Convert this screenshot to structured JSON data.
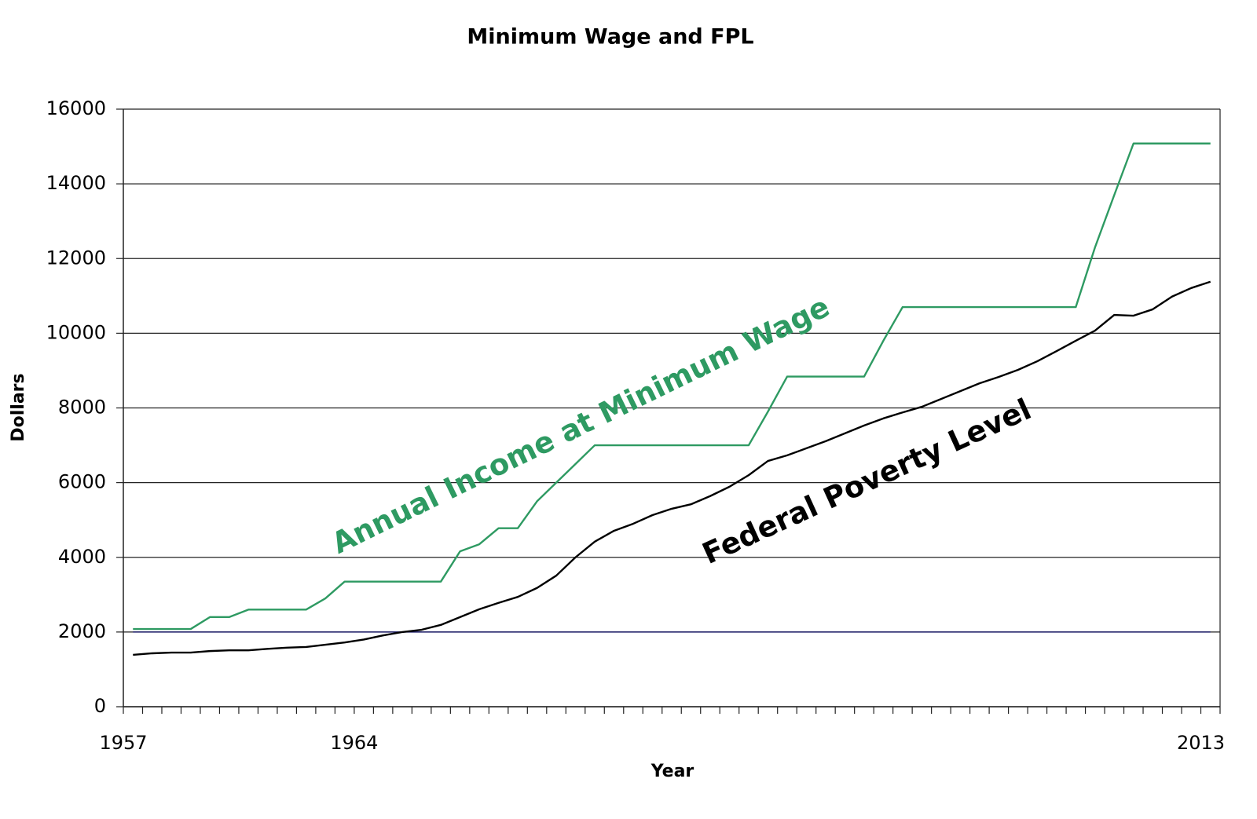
{
  "chart_data": {
    "type": "line",
    "title": "Minimum Wage and FPL",
    "x_label": "Year",
    "y_label": "Dollars",
    "categories": [
      "1957",
      null,
      null,
      null,
      null,
      null,
      null,
      null,
      null,
      null,
      null,
      null,
      "1964",
      null,
      null,
      null,
      null,
      null,
      null,
      null,
      null,
      null,
      null,
      null,
      null,
      null,
      null,
      null,
      null,
      null,
      null,
      null,
      null,
      null,
      null,
      null,
      null,
      null,
      null,
      null,
      null,
      null,
      null,
      null,
      null,
      null,
      null,
      null,
      null,
      null,
      null,
      null,
      null,
      null,
      null,
      null,
      "2013"
    ],
    "series": [
      {
        "color": "#1f1f6b",
        "values": [
          2000,
          2000,
          2000,
          2000,
          2000,
          2000,
          2000,
          2000,
          2000,
          2000,
          2000,
          2000,
          2000,
          2000,
          2000,
          2000,
          2000,
          2000,
          2000,
          2000,
          2000,
          2000,
          2000,
          2000,
          2000,
          2000,
          2000,
          2000,
          2000,
          2000,
          2000,
          2000,
          2000,
          2000,
          2000,
          2000,
          2000,
          2000,
          2000,
          2000,
          2000,
          2000,
          2000,
          2000,
          2000,
          2000,
          2000,
          2000,
          2000,
          2000,
          2000,
          2000,
          2000,
          2000,
          2000,
          2000,
          2000
        ]
      },
      {
        "name": "Annual Income at Minimum Wage",
        "color": "#2e9a62",
        "values": [
          2080,
          2080,
          2080,
          2080,
          2400,
          2400,
          2600,
          2600,
          2600,
          2600,
          2900,
          3350,
          3350,
          3350,
          3350,
          3350,
          3350,
          4160,
          4350,
          4780,
          4780,
          5500,
          6000,
          6500,
          7000,
          7000,
          7000,
          7000,
          7000,
          7000,
          7000,
          7000,
          7000,
          7900,
          8840,
          8840,
          8840,
          8840,
          8840,
          9800,
          10700,
          10700,
          10700,
          10700,
          10700,
          10700,
          10700,
          10700,
          10700,
          10700,
          12300,
          13700,
          15080,
          15080,
          15080,
          15080,
          15080
        ]
      },
      {
        "name": "Federal Poverty Level",
        "color": "#000000",
        "values": [
          1390,
          1430,
          1450,
          1450,
          1490,
          1510,
          1510,
          1550,
          1580,
          1600,
          1660,
          1720,
          1800,
          1910,
          2000,
          2060,
          2190,
          2400,
          2610,
          2780,
          2940,
          3180,
          3510,
          4000,
          4420,
          4710,
          4900,
          5130,
          5300,
          5420,
          5640,
          5890,
          6200,
          6580,
          6730,
          6920,
          7110,
          7320,
          7530,
          7720,
          7880,
          8030,
          8240,
          8450,
          8660,
          8830,
          9020,
          9250,
          9520,
          9800,
          10070,
          10490,
          10470,
          10640,
          10980,
          11210,
          11380
        ]
      }
    ],
    "ylim": [
      0,
      16000
    ],
    "yticks": [
      0,
      2000,
      4000,
      6000,
      8000,
      10000,
      12000,
      14000,
      16000
    ],
    "grid": true
  }
}
